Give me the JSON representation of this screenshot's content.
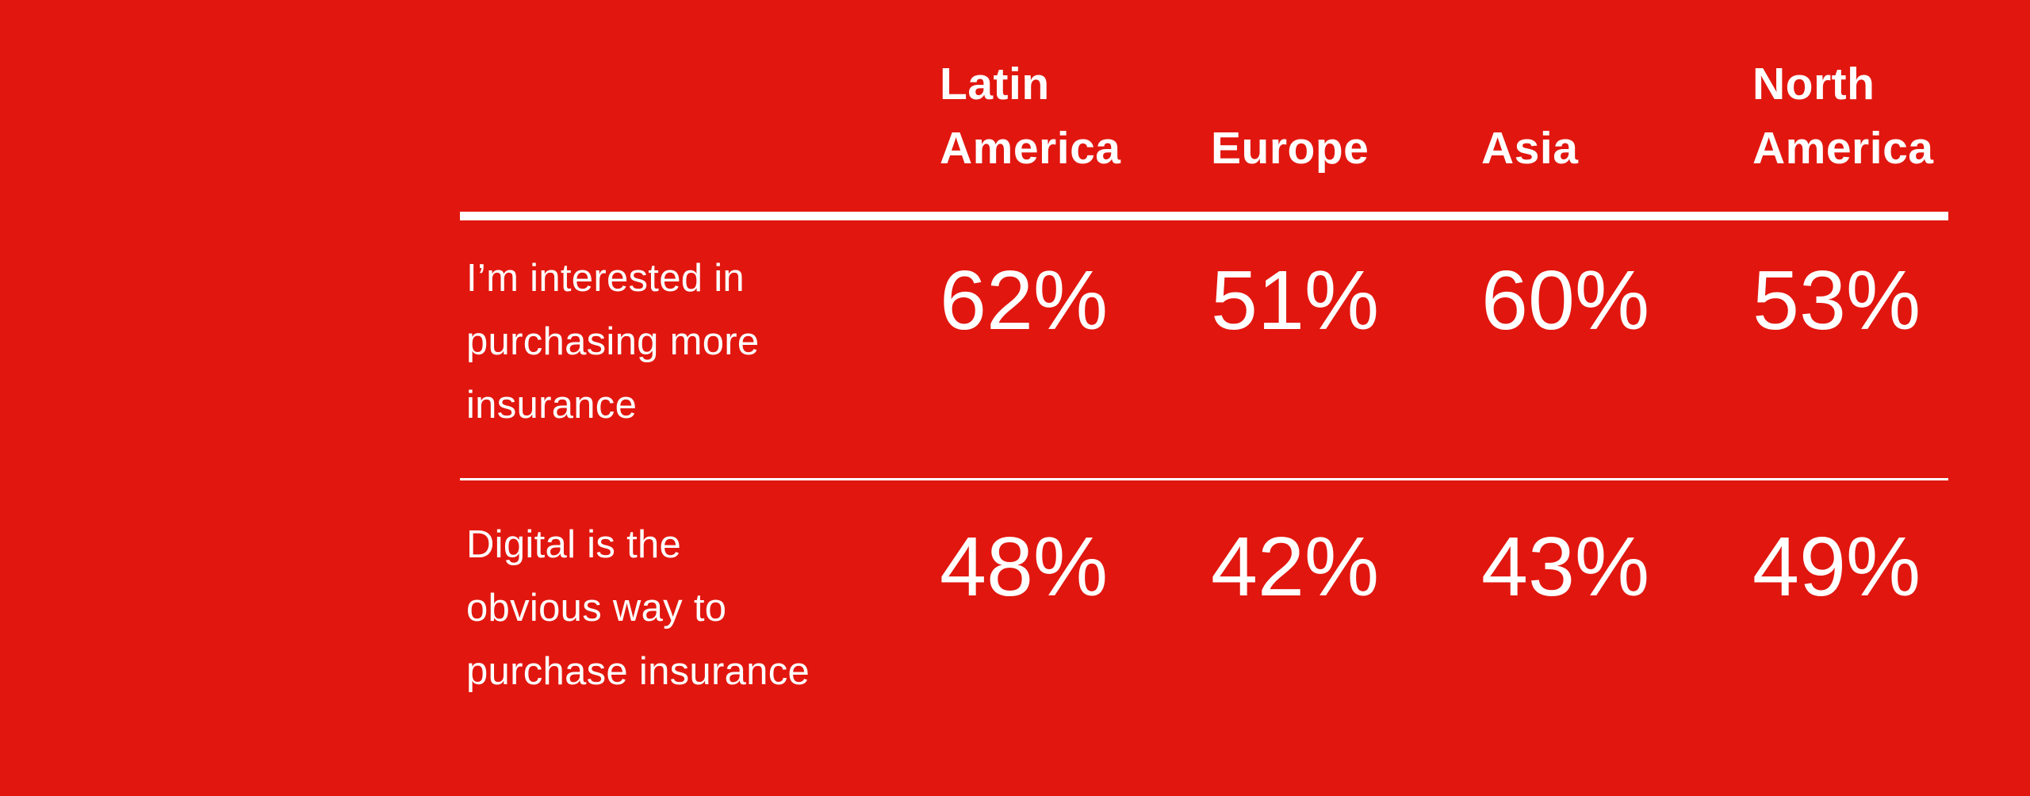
{
  "theme": {
    "background_color": "#e1170f",
    "text_color": "#ffffff",
    "rule_color": "#ffffff"
  },
  "chart_data": {
    "type": "table",
    "title": "",
    "columns": [
      "Latin America",
      "Europe",
      "Asia",
      "North America"
    ],
    "rows": [
      {
        "label": "I’m interested in purchasing more insurance",
        "values": [
          "62%",
          "51%",
          "60%",
          "53%"
        ]
      },
      {
        "label": "Digital is the obvious way to purchase insurance",
        "values": [
          "48%",
          "42%",
          "43%",
          "49%"
        ]
      }
    ],
    "layout_hints": {
      "header_rule": "thick white line under column headers",
      "row_divider": "thin white line between rows",
      "grid": "off",
      "value_style": "large thin white numerals"
    }
  },
  "display": {
    "header_lines": [
      [
        "Latin",
        "America"
      ],
      [
        "Europe"
      ],
      [
        "Asia"
      ],
      [
        "North",
        "America"
      ]
    ],
    "row_label_lines": [
      [
        "I’m interested in",
        "purchasing more",
        "insurance"
      ],
      [
        "Digital is the",
        "obvious way to",
        "purchase insurance"
      ]
    ]
  }
}
